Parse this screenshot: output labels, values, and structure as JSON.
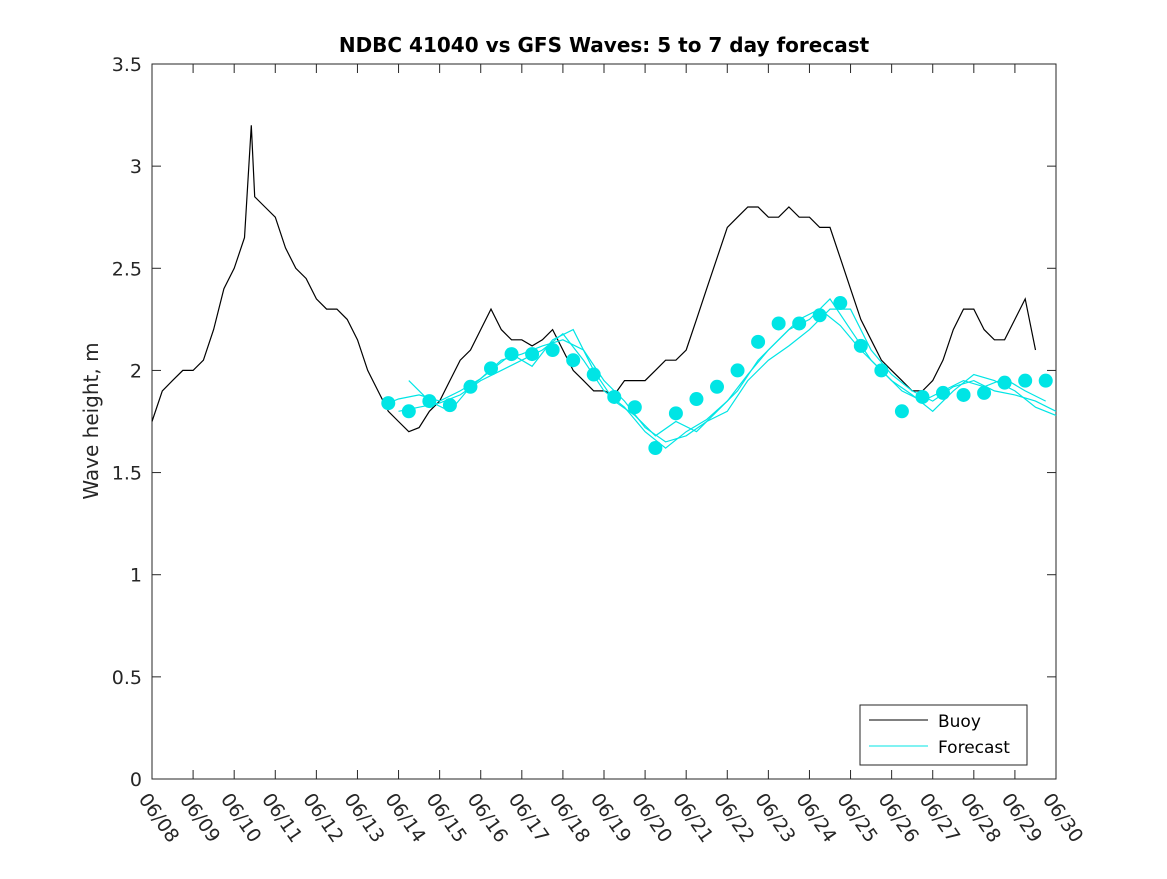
{
  "chart_data": {
    "type": "line",
    "title": "NDBC 41040 vs GFS Waves: 5 to 7 day forecast",
    "xlabel": "",
    "ylabel": "Wave height, m",
    "xlim": [
      "06/08",
      "06/30"
    ],
    "ylim": [
      0,
      3.5
    ],
    "x_ticks": [
      "06/08",
      "06/09",
      "06/10",
      "06/11",
      "06/12",
      "06/13",
      "06/14",
      "06/15",
      "06/16",
      "06/17",
      "06/18",
      "06/19",
      "06/20",
      "06/21",
      "06/22",
      "06/23",
      "06/24",
      "06/25",
      "06/26",
      "06/27",
      "06/28",
      "06/29",
      "06/30"
    ],
    "y_ticks": [
      "0",
      "0.5",
      "1",
      "1.5",
      "2",
      "2.5",
      "3",
      "3.5"
    ],
    "grid": false,
    "legend_position": "bottom-right",
    "colors": {
      "buoy": "#000000",
      "forecast": "#00e5e5",
      "axes": "#262626"
    },
    "series": [
      {
        "name": "Buoy",
        "style": "line",
        "x": [
          "06/08",
          "06/08 06:00",
          "06/08 12:00",
          "06/08 18:00",
          "06/09",
          "06/09 06:00",
          "06/09 12:00",
          "06/09 18:00",
          "06/10",
          "06/10 06:00",
          "06/10 10:00",
          "06/10 12:00",
          "06/10 18:00",
          "06/11",
          "06/11 06:00",
          "06/11 12:00",
          "06/11 18:00",
          "06/12",
          "06/12 06:00",
          "06/12 12:00",
          "06/12 18:00",
          "06/13",
          "06/13 06:00",
          "06/13 12:00",
          "06/13 18:00",
          "06/14",
          "06/14 06:00",
          "06/14 12:00",
          "06/14 18:00",
          "06/15",
          "06/15 06:00",
          "06/15 12:00",
          "06/15 18:00",
          "06/16",
          "06/16 06:00",
          "06/16 12:00",
          "06/16 18:00",
          "06/17",
          "06/17 06:00",
          "06/17 12:00",
          "06/17 18:00",
          "06/18",
          "06/18 06:00",
          "06/18 12:00",
          "06/18 18:00",
          "06/19",
          "06/19 06:00",
          "06/19 12:00",
          "06/19 18:00",
          "06/20",
          "06/20 06:00",
          "06/20 12:00",
          "06/20 18:00",
          "06/21",
          "06/21 06:00",
          "06/21 12:00",
          "06/21 18:00",
          "06/22",
          "06/22 06:00",
          "06/22 12:00",
          "06/22 18:00",
          "06/23",
          "06/23 06:00",
          "06/23 12:00",
          "06/23 18:00",
          "06/24",
          "06/24 06:00",
          "06/24 12:00",
          "06/24 18:00",
          "06/25",
          "06/25 06:00",
          "06/25 12:00",
          "06/25 18:00",
          "06/26",
          "06/26 06:00",
          "06/26 12:00",
          "06/26 18:00",
          "06/27",
          "06/27 06:00",
          "06/27 12:00",
          "06/27 18:00",
          "06/28",
          "06/28 06:00",
          "06/28 12:00",
          "06/28 18:00",
          "06/29",
          "06/29 06:00",
          "06/29 12:00"
        ],
        "y": [
          1.75,
          1.9,
          1.95,
          2.0,
          2.0,
          2.05,
          2.2,
          2.4,
          2.5,
          2.65,
          3.2,
          2.85,
          2.8,
          2.75,
          2.6,
          2.5,
          2.45,
          2.35,
          2.3,
          2.3,
          2.25,
          2.15,
          2.0,
          1.9,
          1.8,
          1.75,
          1.7,
          1.72,
          1.8,
          1.85,
          1.95,
          2.05,
          2.1,
          2.2,
          2.3,
          2.2,
          2.15,
          2.15,
          2.12,
          2.15,
          2.2,
          2.1,
          2.0,
          1.95,
          1.9,
          1.9,
          1.88,
          1.95,
          1.95,
          1.95,
          2.0,
          2.05,
          2.05,
          2.1,
          2.25,
          2.4,
          2.55,
          2.7,
          2.75,
          2.8,
          2.8,
          2.75,
          2.75,
          2.8,
          2.75,
          2.75,
          2.7,
          2.7,
          2.55,
          2.4,
          2.25,
          2.15,
          2.05,
          2.0,
          1.95,
          1.9,
          1.9,
          1.95,
          2.05,
          2.2,
          2.3,
          2.3,
          2.2,
          2.15,
          2.15,
          2.25,
          2.35,
          2.1
        ]
      },
      {
        "name": "Forecast",
        "style": "line",
        "x": [
          "06/13 18:00",
          "06/14",
          "06/14 12:00",
          "06/15",
          "06/15 12:00",
          "06/16",
          "06/16 12:00",
          "06/17",
          "06/17 12:00",
          "06/18",
          "06/18 12:00",
          "06/19",
          "06/19 12:00",
          "06/20",
          "06/20 12:00",
          "06/21",
          "06/21 12:00",
          "06/22",
          "06/22 12:00",
          "06/23",
          "06/23 12:00",
          "06/24",
          "06/24 12:00",
          "06/25",
          "06/25 12:00",
          "06/26",
          "06/26 12:00",
          "06/27",
          "06/27 12:00",
          "06/28",
          "06/28 12:00",
          "06/29",
          "06/29 12:00",
          "06/30"
        ],
        "y": [
          1.84,
          1.86,
          1.88,
          1.85,
          1.9,
          1.96,
          2.05,
          2.08,
          2.12,
          2.15,
          2.1,
          1.95,
          1.85,
          1.72,
          1.65,
          1.68,
          1.75,
          1.8,
          1.95,
          2.05,
          2.12,
          2.2,
          2.3,
          2.3,
          2.1,
          1.98,
          1.9,
          1.85,
          1.92,
          1.95,
          1.9,
          1.88,
          1.85,
          1.8
        ]
      },
      {
        "name": "Forecast",
        "style": "line",
        "x": [
          "06/14",
          "06/14 12:00",
          "06/15",
          "06/15 12:00",
          "06/16",
          "06/16 12:00",
          "06/17",
          "06/17 12:00",
          "06/18",
          "06/18 12:00",
          "06/19",
          "06/19 12:00",
          "06/20",
          "06/20 12:00",
          "06/21",
          "06/21 12:00",
          "06/22",
          "06/22 12:00",
          "06/23",
          "06/23 12:00",
          "06/24",
          "06/24 12:00",
          "06/25",
          "06/25 12:00",
          "06/26",
          "06/26 12:00",
          "06/27",
          "06/27 12:00",
          "06/28",
          "06/28 12:00",
          "06/29",
          "06/29 12:00",
          "06/30"
        ],
        "y": [
          1.8,
          1.82,
          1.84,
          1.88,
          1.95,
          2.0,
          2.05,
          2.1,
          2.18,
          2.05,
          1.9,
          1.82,
          1.7,
          1.62,
          1.7,
          1.76,
          1.85,
          1.98,
          2.1,
          2.2,
          2.25,
          2.35,
          2.2,
          2.05,
          1.95,
          1.88,
          1.8,
          1.9,
          1.98,
          1.95,
          1.9,
          1.82,
          1.78
        ]
      },
      {
        "name": "Forecast",
        "style": "line",
        "x": [
          "06/14 06:00",
          "06/14 18:00",
          "06/15 06:00",
          "06/15 18:00",
          "06/16 06:00",
          "06/16 18:00",
          "06/17 06:00",
          "06/17 18:00",
          "06/18 06:00",
          "06/18 18:00",
          "06/19 06:00",
          "06/19 18:00",
          "06/20 06:00",
          "06/20 18:00",
          "06/21 06:00",
          "06/21 18:00",
          "06/22 06:00",
          "06/22 18:00",
          "06/23 06:00",
          "06/23 18:00",
          "06/24 06:00",
          "06/24 18:00",
          "06/25 06:00",
          "06/25 18:00",
          "06/26 06:00",
          "06/26 18:00",
          "06/27 06:00",
          "06/27 18:00",
          "06/28 06:00",
          "06/28 18:00",
          "06/29 06:00",
          "06/29 18:00"
        ],
        "y": [
          1.95,
          1.85,
          1.8,
          1.92,
          2.0,
          2.08,
          2.02,
          2.15,
          2.2,
          2.0,
          1.85,
          1.78,
          1.68,
          1.75,
          1.7,
          1.8,
          1.9,
          2.05,
          2.15,
          2.25,
          2.3,
          2.22,
          2.1,
          2.0,
          1.9,
          1.85,
          1.9,
          1.95,
          1.92,
          1.96,
          1.9,
          1.85
        ]
      },
      {
        "name": "Forecast daily",
        "style": "markers",
        "x": [
          "06/13 18:00",
          "06/14 06:00",
          "06/14 18:00",
          "06/15 06:00",
          "06/15 18:00",
          "06/16 06:00",
          "06/16 18:00",
          "06/17 06:00",
          "06/17 18:00",
          "06/18 06:00",
          "06/18 18:00",
          "06/19 06:00",
          "06/19 18:00",
          "06/20 06:00",
          "06/20 18:00",
          "06/21 06:00",
          "06/21 18:00",
          "06/22 06:00",
          "06/22 18:00",
          "06/23 06:00",
          "06/23 18:00",
          "06/24 06:00",
          "06/24 18:00",
          "06/25 06:00",
          "06/25 18:00",
          "06/26 06:00",
          "06/26 18:00",
          "06/27 06:00",
          "06/27 18:00",
          "06/28 06:00",
          "06/28 18:00",
          "06/29 06:00",
          "06/29 18:00"
        ],
        "y": [
          1.84,
          1.8,
          1.85,
          1.83,
          1.92,
          2.01,
          2.08,
          2.08,
          2.1,
          2.05,
          1.98,
          1.87,
          1.82,
          1.62,
          1.79,
          1.86,
          1.92,
          2.0,
          2.14,
          2.23,
          2.23,
          2.27,
          2.33,
          2.12,
          2.0,
          1.8,
          1.87,
          1.89,
          1.88,
          1.89,
          1.94,
          1.95,
          1.95
        ]
      }
    ],
    "legend": [
      {
        "label": "Buoy",
        "color": "#000000"
      },
      {
        "label": "Forecast",
        "color": "#00e5e5"
      }
    ]
  }
}
